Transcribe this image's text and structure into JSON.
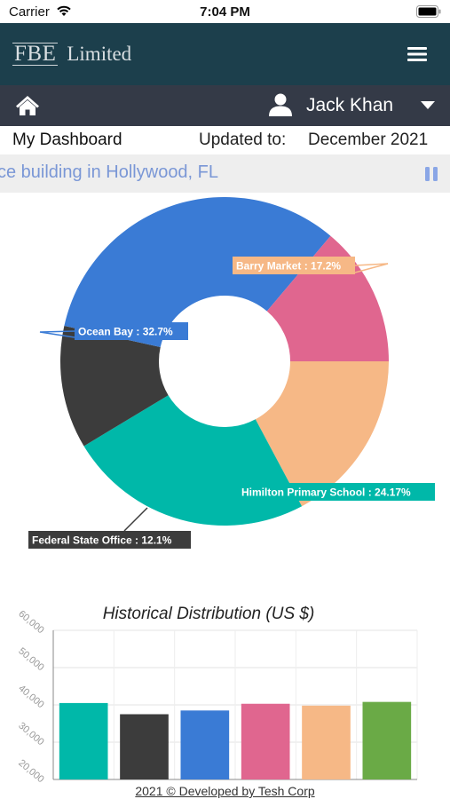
{
  "status_bar": {
    "carrier": "Carrier",
    "time": "7:04 PM"
  },
  "app_bar": {
    "logo_mark": "FBE",
    "logo_text": "Limited"
  },
  "user_bar": {
    "user_name": "Jack Khan"
  },
  "dashboard": {
    "title": "My Dashboard",
    "updated_label": "Updated to:",
    "updated_value": "December 2021"
  },
  "ticker": {
    "text": "nt Office building in Hollywood, FL"
  },
  "chart_data": [
    {
      "type": "pie",
      "donut": true,
      "slices": [
        {
          "label": "Barry Market : 17.2%",
          "value": 17.2,
          "color": "#f6b886"
        },
        {
          "label": "Himilton Primary School : 24.17%",
          "value": 24.17,
          "color": "#00b8a9"
        },
        {
          "label": "Federal State Office : 12.1%",
          "value": 12.1,
          "color": "#3c3c3c"
        },
        {
          "label": "Ocean Bay : 32.7%",
          "value": 32.7,
          "color": "#3a7bd5"
        },
        {
          "label": "",
          "value": 13.83,
          "color": "#e0668f"
        }
      ]
    },
    {
      "type": "bar",
      "title": "Historical Distribution (US $)",
      "ylim": [
        20000,
        60000
      ],
      "y_ticks": [
        "20,000",
        "30,000",
        "40,000",
        "50,000",
        "60,000"
      ],
      "values": [
        40500,
        37500,
        38500,
        40300,
        39800,
        40800
      ],
      "colors": [
        "#00b8a9",
        "#3c3c3c",
        "#3a7bd5",
        "#e0668f",
        "#f6b886",
        "#6aaa46"
      ]
    }
  ],
  "footer": {
    "text": "2021 © Developed by Tesh Corp"
  }
}
